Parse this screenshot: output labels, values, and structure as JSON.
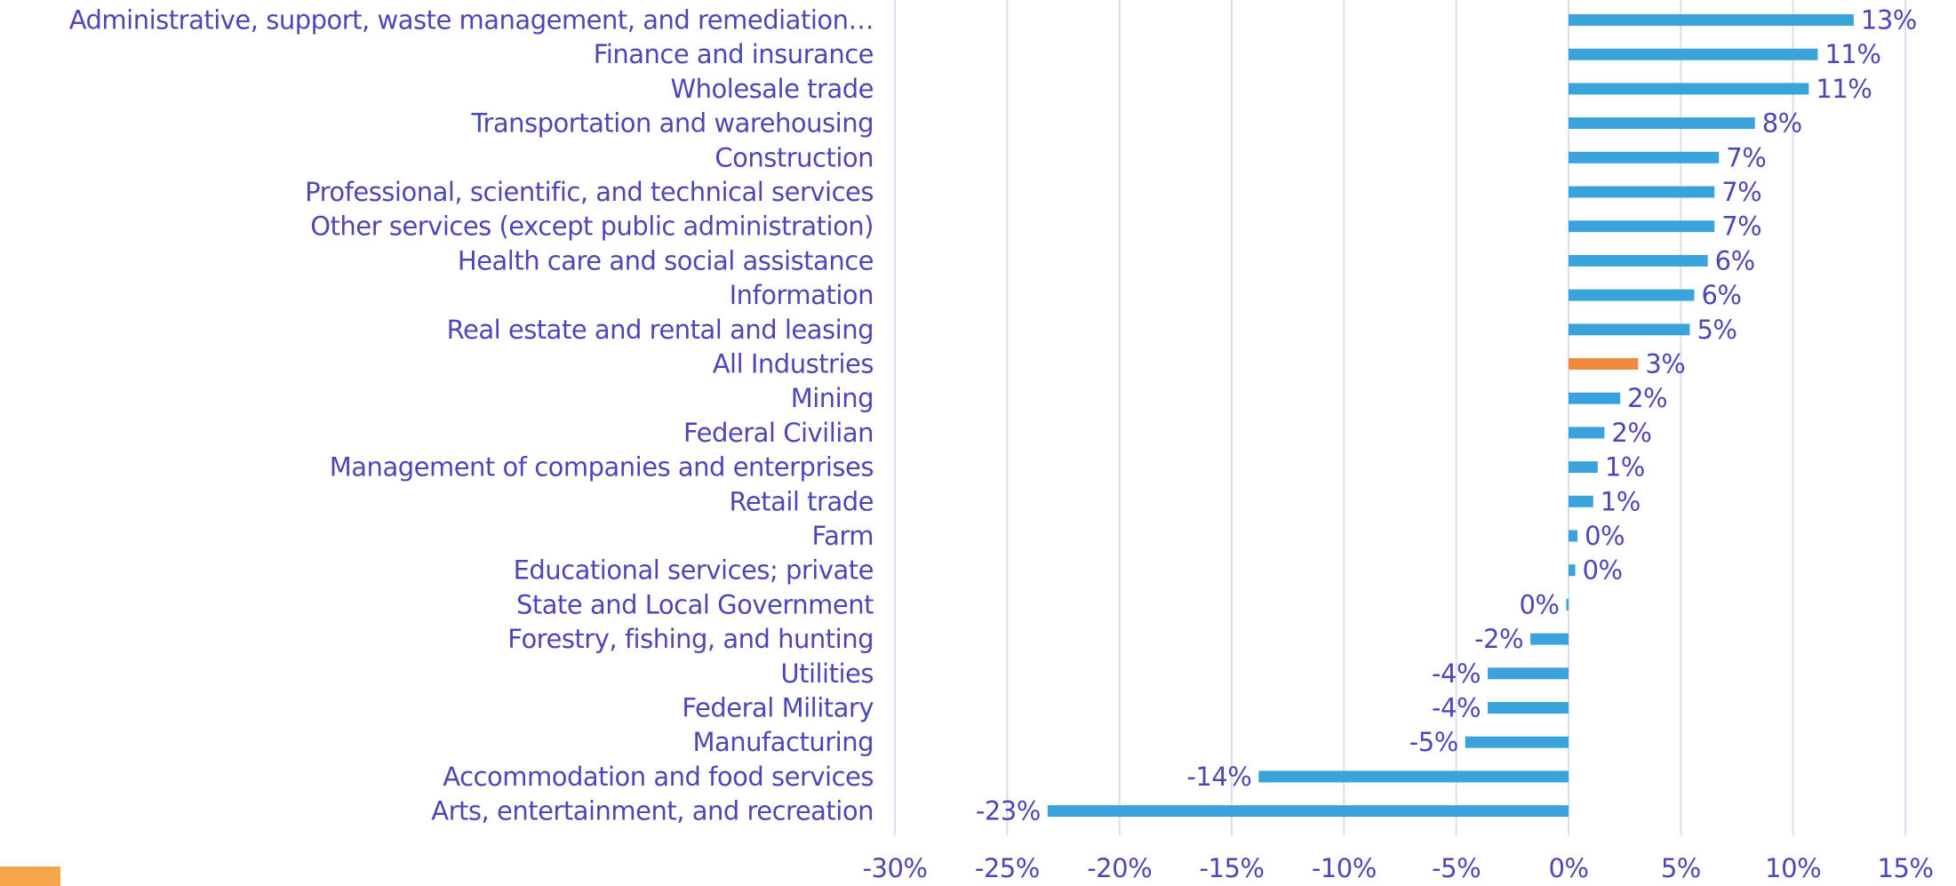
{
  "chart_data": {
    "type": "bar",
    "orientation": "horizontal",
    "categories": [
      "Administrative, support, waste management, and remediation…",
      "Finance and insurance",
      "Wholesale trade",
      "Transportation and warehousing",
      "Construction",
      "Professional, scientific, and technical services",
      "Other services (except public administration)",
      "Health care and social assistance",
      "Information",
      "Real estate and rental and leasing",
      "All Industries",
      "Mining",
      "Federal Civilian",
      "Management of companies and enterprises",
      "Retail trade",
      "Farm",
      "Educational services; private",
      "State and Local Government",
      "Forestry, fishing, and hunting",
      "Utilities",
      "Federal Military",
      "Manufacturing",
      "Accommodation and food services",
      "Arts, entertainment, and recreation"
    ],
    "values": [
      12.7,
      11.1,
      10.7,
      8.3,
      6.7,
      6.5,
      6.5,
      6.2,
      5.6,
      5.4,
      3.1,
      2.3,
      1.6,
      1.3,
      1.1,
      0.4,
      0.3,
      -0.1,
      -1.7,
      -3.6,
      -3.6,
      -4.6,
      -13.8,
      -23.2
    ],
    "value_labels": [
      "13%",
      "11%",
      "11%",
      "8%",
      "7%",
      "7%",
      "7%",
      "6%",
      "6%",
      "5%",
      "3%",
      "2%",
      "2%",
      "1%",
      "1%",
      "0%",
      "0%",
      "0%",
      "-2%",
      "-4%",
      "-4%",
      "-5%",
      "-14%",
      "-23%"
    ],
    "colors": [
      "#3aa3dc",
      "#3aa3dc",
      "#3aa3dc",
      "#3aa3dc",
      "#3aa3dc",
      "#3aa3dc",
      "#3aa3dc",
      "#3aa3dc",
      "#3aa3dc",
      "#3aa3dc",
      "#f08a3c",
      "#3aa3dc",
      "#3aa3dc",
      "#3aa3dc",
      "#3aa3dc",
      "#3aa3dc",
      "#3aa3dc",
      "#3aa3dc",
      "#3aa3dc",
      "#3aa3dc",
      "#3aa3dc",
      "#3aa3dc",
      "#3aa3dc",
      "#3aa3dc"
    ],
    "xlim": [
      -30,
      15
    ],
    "xticks": [
      {
        "value": -30,
        "label": "-30%"
      },
      {
        "value": -25,
        "label": "-25%"
      },
      {
        "value": -20,
        "label": "-20%"
      },
      {
        "value": -15,
        "label": "-15%"
      },
      {
        "value": -10,
        "label": "-10%"
      },
      {
        "value": -5,
        "label": "-5%"
      },
      {
        "value": 0,
        "label": "0%"
      },
      {
        "value": 5,
        "label": "5%"
      },
      {
        "value": 10,
        "label": "10%"
      },
      {
        "value": 15,
        "label": "15%"
      }
    ],
    "grid": true
  }
}
